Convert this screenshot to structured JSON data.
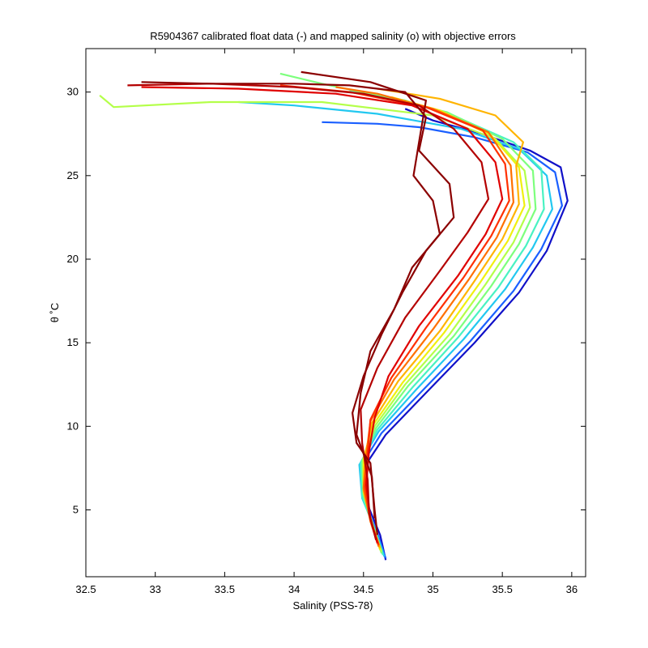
{
  "chart_data": {
    "type": "line",
    "title": "R5904367 calibrated float data (-) and mapped salinity (o) with objective errors",
    "xlabel": "Salinity (PSS-78)",
    "ylabel": "θ ˚C",
    "xlim": [
      32.5,
      36.1
    ],
    "ylim": [
      1.0,
      32.6
    ],
    "xticks": [
      32.5,
      33,
      33.5,
      34,
      34.5,
      35,
      35.5,
      36
    ],
    "xtick_labels": [
      "32.5",
      "33",
      "33.5",
      "34",
      "34.5",
      "35",
      "35.5",
      "36"
    ],
    "yticks": [
      5,
      10,
      15,
      20,
      25,
      30
    ],
    "ytick_labels": [
      "5",
      "10",
      "15",
      "20",
      "25",
      "30"
    ],
    "grid": false,
    "legend": "none",
    "colormap": "jet (profile index: early = dark blue, late = dark red)",
    "series": [
      {
        "color": "#1010c8",
        "x": [
          34.66,
          34.62,
          34.52,
          34.5,
          34.66,
          34.95,
          35.3,
          35.62,
          35.82,
          35.97,
          35.92,
          35.7,
          35.35,
          35.0,
          34.8
        ],
        "y": [
          2.0,
          3.5,
          5.5,
          7.5,
          9.5,
          12.0,
          15.0,
          18.0,
          20.5,
          23.5,
          25.5,
          26.5,
          27.5,
          28.3,
          29.0
        ]
      },
      {
        "color": "#1a5fff",
        "x": [
          34.66,
          34.6,
          34.5,
          34.48,
          34.63,
          34.92,
          35.27,
          35.58,
          35.78,
          35.93,
          35.88,
          35.68,
          35.3,
          34.9,
          34.6,
          34.2
        ],
        "y": [
          2.1,
          3.6,
          5.6,
          7.6,
          9.6,
          12.1,
          15.1,
          18.1,
          20.6,
          23.2,
          25.2,
          26.4,
          27.3,
          27.9,
          28.1,
          28.2
        ]
      },
      {
        "color": "#22c8f0",
        "x": [
          34.65,
          34.59,
          34.49,
          34.47,
          34.61,
          34.88,
          35.22,
          35.52,
          35.72,
          35.86,
          35.82,
          35.62,
          35.2,
          34.6,
          34.0,
          33.6
        ],
        "y": [
          2.2,
          3.7,
          5.7,
          7.7,
          9.7,
          12.2,
          15.2,
          18.2,
          20.7,
          23.0,
          25.0,
          26.6,
          27.8,
          28.7,
          29.2,
          29.4
        ]
      },
      {
        "color": "#49f2c2",
        "x": [
          34.64,
          34.58,
          34.49,
          34.48,
          34.6,
          34.85,
          35.18,
          35.47,
          35.67,
          35.8,
          35.78,
          35.58,
          35.2,
          34.8,
          34.4
        ],
        "y": [
          2.3,
          3.8,
          5.8,
          7.8,
          9.8,
          12.3,
          15.3,
          18.3,
          20.8,
          23.0,
          25.4,
          27.0,
          28.4,
          29.5,
          30.1
        ]
      },
      {
        "color": "#7dff7d",
        "x": [
          34.63,
          34.57,
          34.5,
          34.49,
          34.59,
          34.82,
          35.15,
          35.42,
          35.62,
          35.74,
          35.72,
          35.5,
          35.1,
          34.6,
          34.2,
          33.9
        ],
        "y": [
          2.4,
          3.9,
          5.9,
          7.9,
          9.9,
          12.4,
          15.4,
          18.4,
          20.9,
          23.0,
          25.3,
          27.2,
          28.8,
          29.8,
          30.5,
          31.1
        ]
      },
      {
        "color": "#b4ff49",
        "x": [
          34.63,
          34.57,
          34.5,
          34.5,
          34.58,
          34.8,
          35.12,
          35.38,
          35.58,
          35.7,
          35.66,
          35.45,
          35.0,
          34.2,
          33.4,
          32.7,
          32.6
        ],
        "y": [
          2.5,
          4.0,
          6.0,
          8.0,
          10.0,
          12.5,
          15.5,
          18.5,
          21.0,
          23.1,
          25.3,
          27.2,
          28.6,
          29.4,
          29.4,
          29.1,
          29.8
        ]
      },
      {
        "color": "#f0f010",
        "x": [
          34.62,
          34.56,
          34.5,
          34.5,
          34.57,
          34.78,
          35.08,
          35.34,
          35.54,
          35.66,
          35.62,
          35.42,
          35.05,
          34.7
        ],
        "y": [
          2.6,
          4.1,
          6.1,
          8.1,
          10.1,
          12.6,
          15.6,
          18.6,
          21.1,
          23.2,
          25.5,
          27.4,
          28.9,
          29.7
        ]
      },
      {
        "color": "#ffb400",
        "x": [
          34.62,
          34.56,
          34.5,
          34.51,
          34.56,
          34.75,
          35.05,
          35.3,
          35.5,
          35.62,
          35.6,
          35.65,
          35.45,
          35.05,
          34.6
        ],
        "y": [
          2.7,
          4.2,
          6.2,
          8.2,
          10.2,
          12.7,
          15.7,
          18.7,
          21.2,
          23.3,
          25.6,
          27.0,
          28.6,
          29.6,
          30.2
        ]
      },
      {
        "color": "#ff7000",
        "x": [
          34.61,
          34.55,
          34.5,
          34.52,
          34.55,
          34.72,
          35.0,
          35.26,
          35.46,
          35.58,
          35.56,
          35.4,
          35.0,
          34.6,
          34.3
        ],
        "y": [
          2.8,
          4.3,
          6.3,
          8.3,
          10.3,
          12.8,
          15.8,
          18.8,
          21.3,
          23.4,
          25.6,
          27.6,
          29.0,
          29.9,
          30.3
        ]
      },
      {
        "color": "#ff3000",
        "x": [
          34.61,
          34.55,
          34.51,
          34.53,
          34.55,
          34.7,
          34.95,
          35.22,
          35.42,
          35.55,
          35.52,
          35.36,
          34.95,
          34.4,
          33.9
        ],
        "y": [
          2.9,
          4.4,
          6.4,
          8.4,
          10.4,
          12.9,
          15.9,
          18.9,
          21.4,
          23.5,
          25.7,
          27.7,
          29.1,
          30.0,
          30.4
        ]
      },
      {
        "color": "#e00000",
        "x": [
          34.6,
          34.55,
          34.52,
          34.54,
          34.58,
          34.68,
          34.9,
          35.18,
          35.38,
          35.5,
          35.45,
          35.25,
          34.85,
          34.3,
          33.6,
          32.9
        ],
        "y": [
          3.0,
          4.5,
          6.5,
          8.5,
          10.5,
          13.0,
          16.0,
          19.0,
          21.5,
          23.6,
          25.8,
          27.8,
          29.2,
          29.9,
          30.2,
          30.3
        ]
      },
      {
        "color": "#b40000",
        "x": [
          34.59,
          34.54,
          34.53,
          34.49,
          34.48,
          34.6,
          34.8,
          35.05,
          35.25,
          35.4,
          35.35,
          35.15,
          34.9,
          34.5,
          34.0,
          33.4,
          32.8
        ],
        "y": [
          3.2,
          4.8,
          6.8,
          9.0,
          11.0,
          13.5,
          16.5,
          19.3,
          21.6,
          23.6,
          25.8,
          27.8,
          29.2,
          29.9,
          30.3,
          30.5,
          30.4
        ]
      },
      {
        "color": "#8b0000",
        "x": [
          34.6,
          34.58,
          34.55,
          34.45,
          34.42,
          34.5,
          34.63,
          34.78,
          34.95,
          35.15,
          35.12,
          34.9,
          34.95,
          34.8,
          34.4,
          34.0,
          33.4,
          32.9
        ],
        "y": [
          3.5,
          5.0,
          7.8,
          9.0,
          10.8,
          13.0,
          15.5,
          18.0,
          20.5,
          22.5,
          24.5,
          26.5,
          28.5,
          30.0,
          30.4,
          30.5,
          30.5,
          30.6
        ]
      },
      {
        "color": "#8b0000",
        "x": [
          34.58,
          34.56,
          34.45,
          34.48,
          34.55,
          34.72,
          34.85,
          35.05,
          35.0,
          34.86,
          34.9,
          34.95,
          34.55,
          34.05
        ],
        "y": [
          4.5,
          7.0,
          9.5,
          12.0,
          14.5,
          17.0,
          19.5,
          21.5,
          23.5,
          25.0,
          27.0,
          29.5,
          30.6,
          31.2
        ]
      }
    ]
  }
}
